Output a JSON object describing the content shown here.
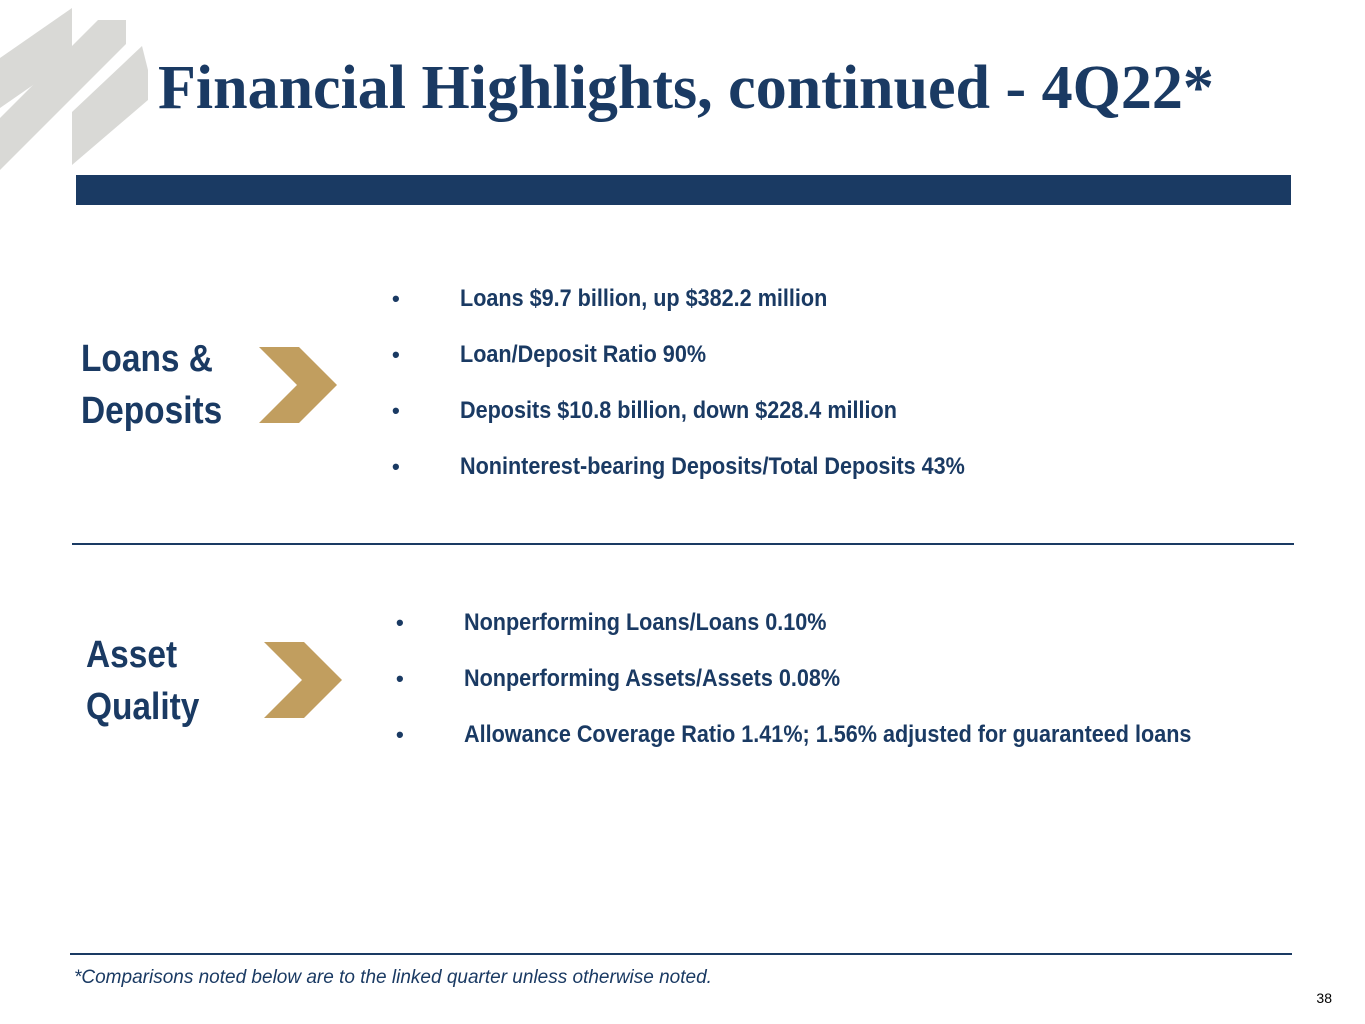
{
  "slide": {
    "title": "Financial Highlights, continued - 4Q22*",
    "page_number": "38",
    "footnote": "*Comparisons noted below are to the linked quarter unless otherwise noted."
  },
  "colors": {
    "navy": "#1a3a63",
    "gold": "#c19e5f",
    "logo_gray": "#d9d9d6"
  },
  "icons": {
    "logo": "diagonal-stripes-logo",
    "section_marker": "chevron-right-icon",
    "bullet": "bullet-dot"
  },
  "sections": {
    "loans_deposits": {
      "label_line1": "Loans &",
      "label_line2": "Deposits",
      "bullet_glyph": "•",
      "items": [
        "Loans $9.7 billion, up $382.2 million",
        "Loan/Deposit Ratio 90%",
        "Deposits $10.8 billion, down $228.4 million",
        "Noninterest-bearing Deposits/Total Deposits 43%"
      ]
    },
    "asset_quality": {
      "label_line1": "Asset",
      "label_line2": "Quality",
      "bullet_glyph": "•",
      "items": [
        "Nonperforming Loans/Loans 0.10%",
        "Nonperforming Assets/Assets 0.08%",
        "Allowance Coverage Ratio 1.41%; 1.56% adjusted for guaranteed loans"
      ]
    }
  }
}
